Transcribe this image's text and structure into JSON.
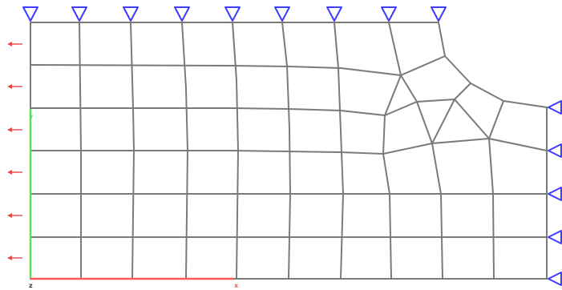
{
  "axes": {
    "x_label": "x",
    "y_label": "y",
    "z_label": "z",
    "x_color": "#ff5a5a",
    "y_color": "#55e055",
    "z_color": "#333333"
  },
  "colors": {
    "mesh": "#7a7a7a",
    "supports": "#3d3dff",
    "loads": "#e34a4a",
    "background": "#ffffff"
  },
  "supports": {
    "top_count": 9,
    "right_count": 5
  },
  "loads": {
    "left_arrow_count": 6
  }
}
